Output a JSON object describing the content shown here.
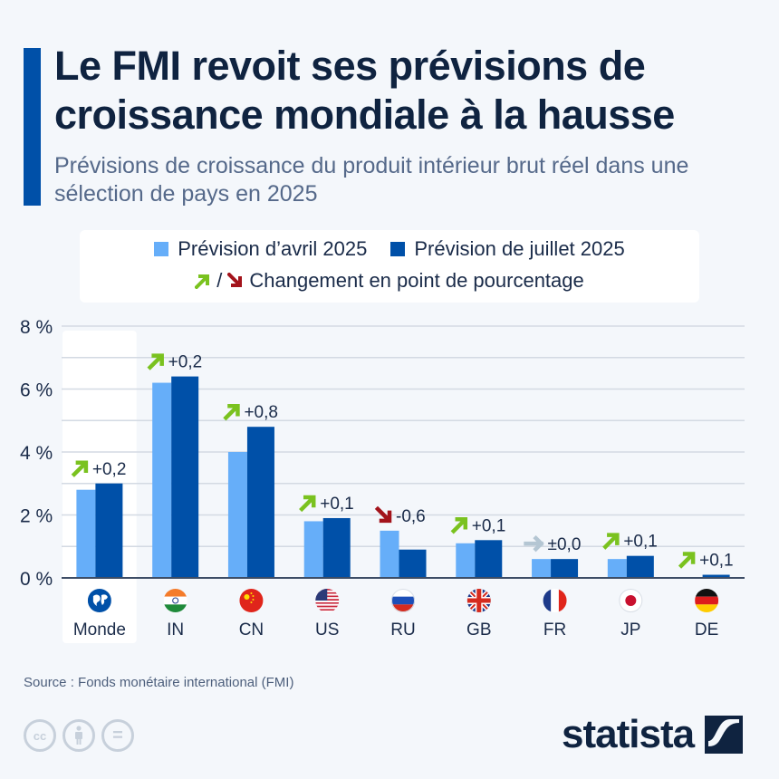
{
  "header": {
    "title": "Le FMI revoit ses prévisions de croissance mondiale à la hausse",
    "subtitle": "Prévisions de croissance du produit intérieur brut réel dans une sélection de pays en 2025"
  },
  "legend": {
    "april_label": "Prévision d’avril 2025",
    "july_label": "Prévision de juillet 2025",
    "change_separator": "/",
    "change_label": "Changement en point de pourcentage"
  },
  "colors": {
    "april": "#66aef9",
    "july": "#0050a8",
    "up_arrow": "#7ac21f",
    "down_arrow": "#a3131b",
    "neutral_arrow": "#b4c6d3",
    "accent": "#0050a8",
    "title": "#0f2340"
  },
  "chart_data": {
    "type": "bar",
    "title": "Le FMI revoit ses prévisions de croissance mondiale à la hausse",
    "subtitle": "Prévisions de croissance du produit intérieur brut réel dans une sélection de pays en 2025",
    "xlabel": "",
    "ylabel": "",
    "ylim": [
      0,
      8
    ],
    "yticks": [
      0,
      2,
      4,
      6,
      8
    ],
    "ytick_labels": [
      "0 %",
      "2 %",
      "4 %",
      "6 %",
      "8 %"
    ],
    "grid": true,
    "legend_position": "top-center",
    "categories": [
      "Monde",
      "IN",
      "CN",
      "US",
      "RU",
      "GB",
      "FR",
      "JP",
      "DE"
    ],
    "category_icons": [
      "world-globe-icon",
      "india-flag-icon",
      "china-flag-icon",
      "usa-flag-icon",
      "russia-flag-icon",
      "uk-flag-icon",
      "france-flag-icon",
      "japan-flag-icon",
      "germany-flag-icon"
    ],
    "highlighted_category": "Monde",
    "series": [
      {
        "name": "Prévision d’avril 2025",
        "values": [
          2.8,
          6.2,
          4.0,
          1.8,
          1.5,
          1.1,
          0.6,
          0.6,
          0.0
        ]
      },
      {
        "name": "Prévision de juillet 2025",
        "values": [
          3.0,
          6.4,
          4.8,
          1.9,
          0.9,
          1.2,
          0.6,
          0.7,
          0.1
        ]
      }
    ],
    "changes": [
      {
        "label": "+0,2",
        "direction": "up"
      },
      {
        "label": "+0,2",
        "direction": "up"
      },
      {
        "label": "+0,8",
        "direction": "up"
      },
      {
        "label": "+0,1",
        "direction": "up"
      },
      {
        "label": "-0,6",
        "direction": "down"
      },
      {
        "label": "+0,1",
        "direction": "up"
      },
      {
        "label": "±0,0",
        "direction": "neutral"
      },
      {
        "label": "+0,1",
        "direction": "up"
      },
      {
        "label": "+0,1",
        "direction": "up"
      }
    ]
  },
  "footer": {
    "source": "Source : Fonds monétaire international (FMI)",
    "license_icons": [
      "cc-icon",
      "attribution-icon",
      "no-derivatives-icon"
    ],
    "cc_label": "cc",
    "nd_label": "=",
    "brand": "statista"
  }
}
